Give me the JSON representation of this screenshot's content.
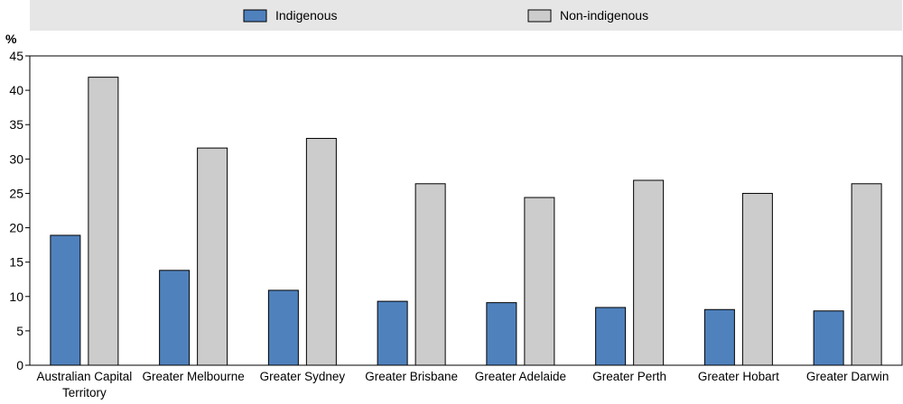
{
  "chart_data": {
    "type": "bar",
    "ylabel": "%",
    "ylim": [
      0,
      45
    ],
    "yticks": [
      0,
      5,
      10,
      15,
      20,
      25,
      30,
      35,
      40,
      45
    ],
    "grid": false,
    "legend_position": "top",
    "categories": [
      [
        "Australian Capital",
        "Territory"
      ],
      [
        "Greater Melbourne"
      ],
      [
        "Greater Sydney"
      ],
      [
        "Greater Brisbane"
      ],
      [
        "Greater Adelaide"
      ],
      [
        "Greater Perth"
      ],
      [
        "Greater Hobart"
      ],
      [
        "Greater Darwin"
      ]
    ],
    "series": [
      {
        "name": "Indigenous",
        "color": "#4f81bd",
        "values": [
          18.9,
          13.8,
          10.9,
          9.3,
          9.1,
          8.4,
          8.1,
          7.9
        ]
      },
      {
        "name": "Non-indigenous",
        "color": "#cccccc",
        "values": [
          41.9,
          31.6,
          33.0,
          26.4,
          24.4,
          26.9,
          25.0,
          26.4
        ]
      }
    ]
  }
}
